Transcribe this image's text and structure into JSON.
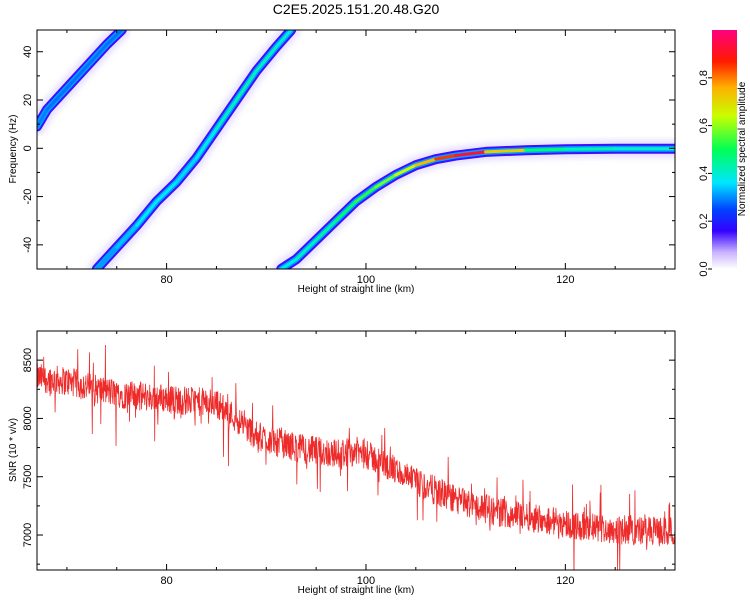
{
  "title": "C2E5.2025.151.20.48.G20",
  "colors": {
    "snr_line": "#ee2b2b",
    "frame": "#000000"
  },
  "chart_data": [
    {
      "type": "heatmap",
      "xlabel": "Height of straight line (km)",
      "ylabel": "Frequency (Hz)",
      "xlim": [
        67,
        131
      ],
      "ylim": [
        -50,
        49
      ],
      "x_ticks": [
        80,
        100,
        120
      ],
      "y_ticks": [
        -40,
        -20,
        0,
        20,
        40
      ],
      "colorbar": {
        "label": "Normalized spectral amplitude",
        "range": [
          0,
          1
        ],
        "ticks": [
          "0.0",
          "0.2",
          "0.4",
          "0.6",
          "0.8"
        ],
        "colormap": "rainbow-white-purple-blue-cyan-green-yellow-red-magenta"
      },
      "tracks": [
        {
          "points": [
            [
              67,
              9
            ],
            [
              68,
              16
            ],
            [
              70,
              25
            ],
            [
              72,
              34
            ],
            [
              74,
              43
            ],
            [
              75.5,
              49
            ]
          ],
          "amplitude": [
            0.3,
            0.28,
            0.28,
            0.28,
            0.28,
            0.28
          ]
        },
        {
          "points": [
            [
              73,
              -50
            ],
            [
              75,
              -41
            ],
            [
              77,
              -32
            ],
            [
              79,
              -22
            ],
            [
              81,
              -14
            ],
            [
              83,
              -4
            ],
            [
              85,
              8
            ],
            [
              87,
              20
            ],
            [
              89,
              32
            ],
            [
              91,
              42
            ],
            [
              92.5,
              49
            ]
          ],
          "amplitude": [
            0.3,
            0.32,
            0.35,
            0.38,
            0.35,
            0.35,
            0.4,
            0.42,
            0.42,
            0.4,
            0.38
          ]
        },
        {
          "points": [
            [
              91.5,
              -50
            ],
            [
              93,
              -46
            ],
            [
              95,
              -38
            ],
            [
              97,
              -30
            ],
            [
              99,
              -22
            ],
            [
              101,
              -16
            ],
            [
              103,
              -11
            ],
            [
              105,
              -7
            ],
            [
              107,
              -4.5
            ],
            [
              109,
              -3
            ],
            [
              112,
              -1.5
            ],
            [
              116,
              -0.8
            ],
            [
              120,
              -0.4
            ],
            [
              125,
              -0.2
            ],
            [
              131,
              -0.2
            ]
          ],
          "amplitude": [
            0.35,
            0.4,
            0.42,
            0.45,
            0.5,
            0.55,
            0.6,
            0.7,
            0.8,
            0.9,
            0.95,
            0.5,
            0.45,
            0.4,
            0.4
          ]
        }
      ]
    },
    {
      "type": "line",
      "xlabel": "Height of straight line (km)",
      "ylabel": "SNR (10 * v/v)",
      "xlim": [
        67,
        131
      ],
      "ylim": [
        6700,
        8750
      ],
      "x_ticks": [
        80,
        100,
        120
      ],
      "y_ticks": [
        7000,
        7500,
        8000,
        8500
      ],
      "series": [
        {
          "x": [
            67,
            70,
            73,
            76,
            79,
            82,
            85,
            87,
            89,
            91,
            93,
            95,
            97,
            99,
            101,
            103,
            105,
            107,
            109,
            111,
            113,
            115,
            117,
            119,
            121,
            123,
            125,
            127,
            129,
            131
          ],
          "values": [
            8350,
            8320,
            8250,
            8200,
            8180,
            8150,
            8130,
            8000,
            7850,
            7800,
            7750,
            7720,
            7700,
            7720,
            7650,
            7550,
            7450,
            7380,
            7300,
            7250,
            7200,
            7180,
            7150,
            7120,
            7080,
            7060,
            7050,
            7040,
            7030,
            7030
          ],
          "noise_amplitude": 180
        }
      ]
    }
  ]
}
